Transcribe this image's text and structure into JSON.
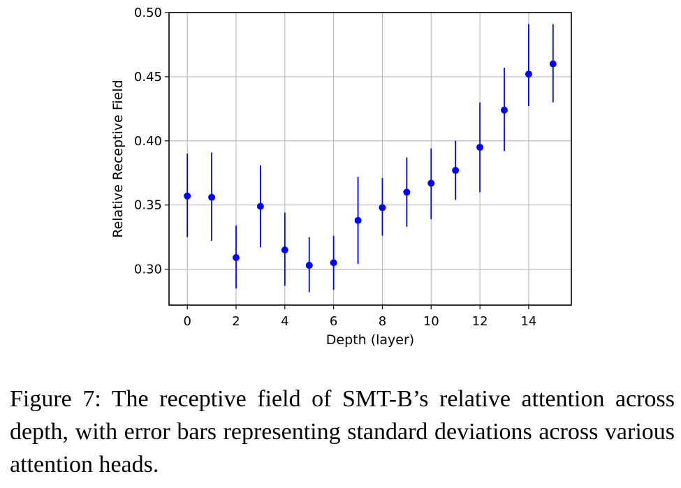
{
  "chart_data": {
    "type": "scatter",
    "title": "",
    "xlabel": "Depth (layer)",
    "ylabel": "Relative Receptive Field",
    "xlim": [
      -0.75,
      15.75
    ],
    "ylim": [
      0.272,
      0.5
    ],
    "xticks": [
      0,
      2,
      4,
      6,
      8,
      10,
      12,
      14
    ],
    "yticks": [
      0.3,
      0.35,
      0.4,
      0.45,
      0.5
    ],
    "ytick_labels": [
      "0.30",
      "0.35",
      "0.40",
      "0.45",
      "0.50"
    ],
    "grid": true,
    "color": "#0000ff",
    "x": [
      0,
      1,
      2,
      3,
      4,
      5,
      6,
      7,
      8,
      9,
      10,
      11,
      12,
      13,
      14,
      15
    ],
    "y": [
      0.357,
      0.356,
      0.309,
      0.349,
      0.315,
      0.303,
      0.305,
      0.338,
      0.348,
      0.36,
      0.367,
      0.377,
      0.395,
      0.424,
      0.452,
      0.46
    ],
    "err_low": [
      0.325,
      0.322,
      0.285,
      0.317,
      0.287,
      0.282,
      0.284,
      0.304,
      0.326,
      0.333,
      0.339,
      0.354,
      0.36,
      0.392,
      0.427,
      0.43
    ],
    "err_high": [
      0.39,
      0.391,
      0.334,
      0.381,
      0.344,
      0.325,
      0.326,
      0.372,
      0.371,
      0.387,
      0.394,
      0.4,
      0.43,
      0.457,
      0.491,
      0.491
    ]
  },
  "caption": "Figure 7: The receptive field of SMT-B’s relative attention across depth, with error bars representing standard deviations across various attention heads."
}
